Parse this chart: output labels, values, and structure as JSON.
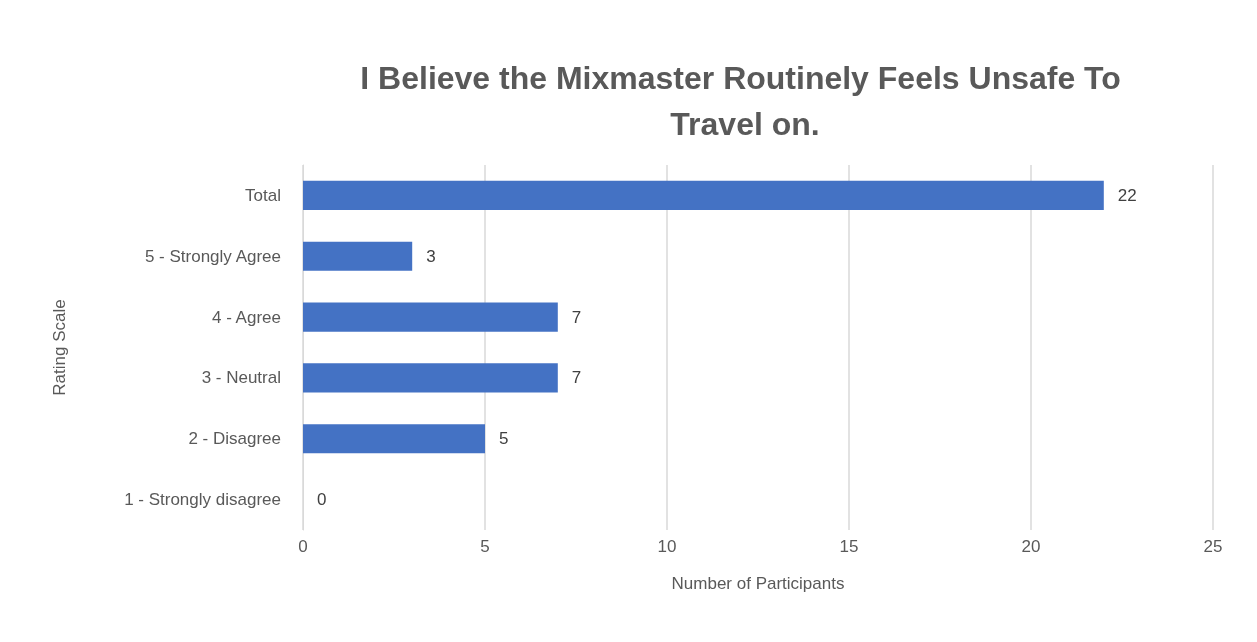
{
  "chart_data": {
    "type": "bar",
    "orientation": "horizontal",
    "title": "I Believe the Mixmaster Routinely Feels Unsafe To Travel on.",
    "xlabel": "Number of Participants",
    "ylabel": "Rating Scale",
    "categories": [
      "Total",
      "5 - Strongly Agree",
      "4 - Agree",
      "3 - Neutral",
      "2 - Disagree",
      "1 - Strongly disagree"
    ],
    "values": [
      22,
      3,
      7,
      7,
      5,
      0
    ],
    "color": "#4472c4",
    "xlim": [
      0,
      25
    ],
    "xticks": [
      0,
      5,
      10,
      15,
      20,
      25
    ],
    "grid": "x",
    "data_labels": true
  }
}
